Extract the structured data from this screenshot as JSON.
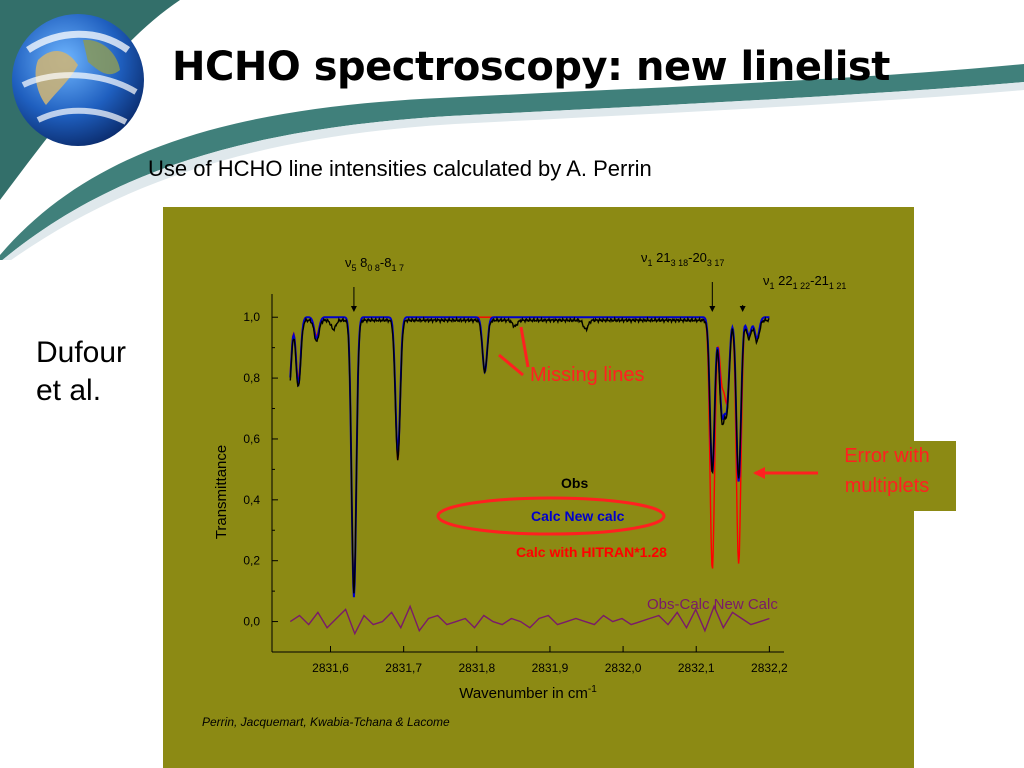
{
  "slide": {
    "title": "HCHO spectroscopy: new linelist",
    "subtitle": "Use of HCHO line intensities calculated by A. Perrin",
    "side_label_line1": "Dufour",
    "side_label_line2": "et al.",
    "callout_line1": "Error with",
    "callout_line2": "multiplets",
    "colors": {
      "figure_bg": "#8c8a14",
      "accent_red": "#ff2020",
      "swoosh": "#1e6a64"
    }
  },
  "chart_data": {
    "type": "line",
    "title": "",
    "xlabel": "Wavenumber in cm",
    "xlabel_superscript": "-1",
    "ylabel": "Transmittance",
    "xlim": [
      2831.52,
      2832.22
    ],
    "ylim": [
      -0.1,
      1.05
    ],
    "x_ticks": [
      {
        "value": 2831.6,
        "label": "2831,6"
      },
      {
        "value": 2831.7,
        "label": "2831,7"
      },
      {
        "value": 2831.8,
        "label": "2831,8"
      },
      {
        "value": 2831.9,
        "label": "2831,9"
      },
      {
        "value": 2832.0,
        "label": "2832,0"
      },
      {
        "value": 2832.1,
        "label": "2832,1"
      },
      {
        "value": 2832.2,
        "label": "2832,2"
      }
    ],
    "y_ticks": [
      {
        "value": 0.0,
        "label": "0,0"
      },
      {
        "value": 0.2,
        "label": "0,2"
      },
      {
        "value": 0.4,
        "label": "0,4"
      },
      {
        "value": 0.6,
        "label": "0,6"
      },
      {
        "value": 0.8,
        "label": "0,8"
      },
      {
        "value": 1.0,
        "label": "1,0"
      }
    ],
    "grid": false,
    "legend": [
      {
        "label": "Obs",
        "color": "#000000"
      },
      {
        "label": "Calc  New calc",
        "color": "#0000cc"
      },
      {
        "label": "Calc with HITRAN*1.28",
        "color": "#ff0000"
      },
      {
        "label": "Obs-Calc  New Calc",
        "color": "#7a1a6a"
      }
    ],
    "series": [
      {
        "name": "Obs",
        "color": "#000000",
        "baseline": 0.99,
        "lines": [
          [
            2831.543,
            0.76
          ],
          [
            2831.556,
            0.78
          ],
          [
            2831.581,
            0.93
          ],
          [
            2831.604,
            0.97
          ],
          [
            2831.632,
            0.1
          ],
          [
            2831.692,
            0.54
          ],
          [
            2831.811,
            0.83
          ],
          [
            2831.852,
            0.98
          ],
          [
            2831.949,
            0.97
          ],
          [
            2832.122,
            0.5
          ],
          [
            2832.135,
            0.69
          ],
          [
            2832.142,
            0.72
          ],
          [
            2832.158,
            0.48
          ],
          [
            2832.172,
            0.94
          ],
          [
            2832.183,
            0.93
          ]
        ]
      },
      {
        "name": "Calc  New calc",
        "color": "#0000cc",
        "baseline": 1.0,
        "lines": [
          [
            2831.543,
            0.76
          ],
          [
            2831.556,
            0.78
          ],
          [
            2831.581,
            0.93
          ],
          [
            2831.632,
            0.08
          ],
          [
            2831.692,
            0.55
          ],
          [
            2831.811,
            0.82
          ],
          [
            2832.122,
            0.49
          ],
          [
            2832.135,
            0.7
          ],
          [
            2832.142,
            0.72
          ],
          [
            2832.158,
            0.46
          ],
          [
            2832.172,
            0.94
          ],
          [
            2832.183,
            0.93
          ]
        ]
      },
      {
        "name": "Calc with HITRAN*1.28",
        "color": "#ff0000",
        "baseline": 1.0,
        "lines": [
          [
            2831.543,
            0.78
          ],
          [
            2831.556,
            0.8
          ],
          [
            2831.581,
            0.94
          ],
          [
            2831.632,
            0.1
          ],
          [
            2831.692,
            0.53
          ],
          [
            2832.122,
            0.17
          ],
          [
            2832.135,
            0.8
          ],
          [
            2832.142,
            0.74
          ],
          [
            2832.158,
            0.19
          ],
          [
            2832.172,
            0.94
          ],
          [
            2832.183,
            0.93
          ]
        ]
      },
      {
        "name": "Obs-Calc  New Calc",
        "color": "#7a1a6a",
        "baseline": 0.0,
        "noise": [
          0.0,
          0.02,
          -0.01,
          0.03,
          -0.02,
          0.01,
          0.04,
          -0.04,
          0.02,
          -0.01,
          0.0,
          0.03,
          -0.02,
          0.05,
          -0.03,
          0.01,
          0.02,
          -0.01,
          0.0,
          0.01,
          -0.02,
          0.02,
          0.0,
          -0.01,
          0.01,
          0.0,
          -0.02,
          0.01,
          0.02,
          -0.01,
          0.0,
          0.01,
          0.0,
          -0.01,
          0.02,
          0.0,
          0.01,
          -0.01,
          0.0,
          0.01,
          0.02,
          -0.01,
          0.03,
          -0.02,
          0.04,
          -0.03,
          0.05,
          -0.02,
          0.03,
          0.01,
          -0.01,
          0.0,
          0.01
        ]
      }
    ],
    "annotations": [
      {
        "nu": "ν",
        "nu_sub": "5",
        "text": "8",
        "sub1": "0 8",
        "mid": "-8",
        "sub2": "1 7",
        "x": 2831.632
      },
      {
        "nu": "ν",
        "nu_sub": "1",
        "text": "21",
        "sub1": "3 18",
        "mid": "-20",
        "sub2": "3 17",
        "x": 2832.122
      },
      {
        "nu": "ν",
        "nu_sub": "1",
        "text": "22",
        "sub1": "1 22",
        "mid": "-21",
        "sub2": "1 21",
        "x": 2832.158
      }
    ],
    "missing_lines_label": "Missing lines",
    "credit": "Perrin, Jacquemart, Kwabia-Tchana & Lacome"
  }
}
